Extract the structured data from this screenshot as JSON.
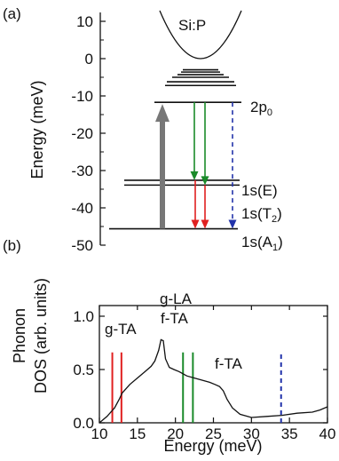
{
  "chart_data": [
    {
      "type": "energy-level-diagram",
      "panel": "(a)",
      "ylabel": "Energy (meV)",
      "ylim": [
        -50,
        12
      ],
      "yticks": [
        10,
        0,
        -10,
        -20,
        -30,
        -40,
        -50
      ],
      "ytick_labels": [
        "10",
        "0",
        "-10",
        "-20",
        "-30",
        "-40",
        "-50"
      ],
      "band_label": "Si:P",
      "levels": [
        {
          "label": "2p",
          "sub": "0",
          "energy": -11.7
        },
        {
          "label": "1s(E)",
          "sub": "",
          "energy": -32.6
        },
        {
          "label": "1s(T",
          "sub": "2",
          "suffix": ")",
          "energy": -33.9
        },
        {
          "label": "1s(A",
          "sub": "1",
          "suffix": ")",
          "energy": -45.6
        }
      ],
      "upper_levels": [
        -3.0,
        -3.6,
        -4.3,
        -5.0,
        -6.2,
        -7.2
      ],
      "transitions": [
        {
          "from": -45.6,
          "to": -11.7,
          "kind": "pump",
          "color": "#777777"
        },
        {
          "from": -11.7,
          "to": -32.6,
          "kind": "relaxation",
          "color": "#1a8a2a"
        },
        {
          "from": -11.7,
          "to": -33.9,
          "kind": "relaxation",
          "color": "#1a8a2a"
        },
        {
          "from": -32.6,
          "to": -45.6,
          "kind": "relaxation",
          "color": "#e02020"
        },
        {
          "from": -33.9,
          "to": -45.6,
          "kind": "relaxation",
          "color": "#e02020"
        },
        {
          "from": -11.7,
          "to": -45.6,
          "kind": "dashed",
          "color": "#2233aa"
        }
      ]
    },
    {
      "type": "line",
      "panel": "(b)",
      "xlabel": "Energy (meV)",
      "ylabel": "Phonon DOS (arb. units)",
      "ylabel_lines": [
        "Phonon",
        "DOS (arb. units)"
      ],
      "xlim": [
        10,
        40
      ],
      "ylim": [
        0,
        1.1
      ],
      "xticks": [
        10,
        15,
        20,
        25,
        30,
        35,
        40
      ],
      "xtick_labels": [
        "10",
        "15",
        "20",
        "25",
        "30",
        "35",
        "40"
      ],
      "yticks": [
        0.0,
        0.5,
        1.0
      ],
      "ytick_labels": [
        "0.0",
        "0.5",
        "1.0"
      ],
      "series": [
        {
          "x": [
            10,
            11,
            12,
            12.6,
            13,
            14,
            15,
            16,
            16.8,
            17.3,
            17.8,
            18.1,
            18.4,
            18.7,
            19.2,
            19.8,
            20.5,
            21.5,
            22.5,
            23.5,
            24.5,
            25.2,
            25.8,
            26.3,
            26.8,
            27.5,
            28.5,
            30,
            32,
            34,
            36,
            38,
            39,
            40
          ],
          "y": [
            0.0,
            0.06,
            0.14,
            0.22,
            0.28,
            0.36,
            0.42,
            0.48,
            0.53,
            0.58,
            0.68,
            0.78,
            0.77,
            0.6,
            0.52,
            0.5,
            0.48,
            0.44,
            0.42,
            0.4,
            0.38,
            0.36,
            0.34,
            0.3,
            0.22,
            0.14,
            0.08,
            0.05,
            0.06,
            0.07,
            0.09,
            0.1,
            0.12,
            0.15
          ]
        }
      ],
      "marker_lines": [
        {
          "x": 11.7,
          "color": "#e02020",
          "style": "solid",
          "height": 0.66
        },
        {
          "x": 12.9,
          "color": "#e02020",
          "style": "solid",
          "height": 0.66
        },
        {
          "x": 21.0,
          "color": "#1a8a2a",
          "style": "solid",
          "height": 0.66
        },
        {
          "x": 22.3,
          "color": "#1a8a2a",
          "style": "solid",
          "height": 0.66
        },
        {
          "x": 33.9,
          "color": "#2233aa",
          "style": "dashed",
          "height": 0.66
        }
      ],
      "annotations": [
        "g-TA",
        "g-LA",
        "f-TA",
        "f-TA"
      ]
    }
  ]
}
